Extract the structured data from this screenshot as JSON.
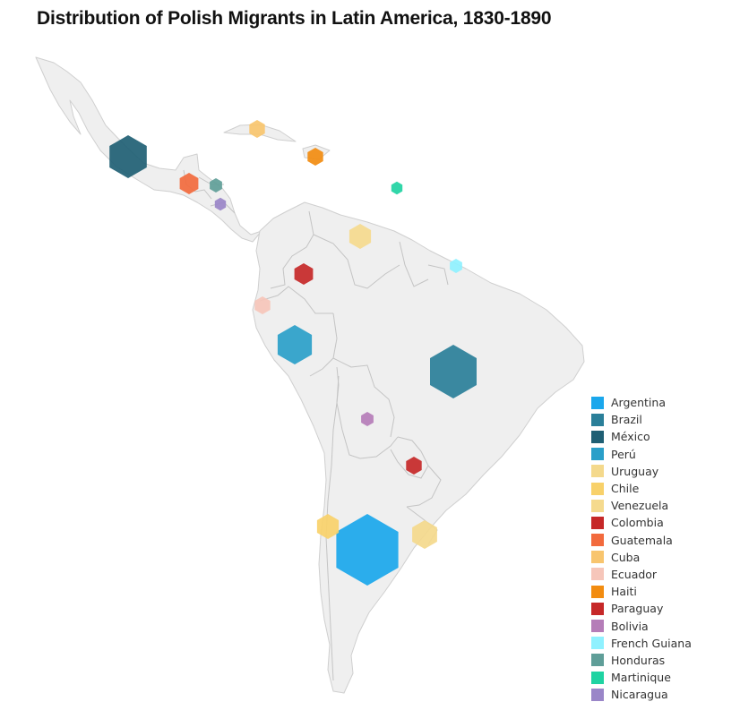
{
  "title": "Distribution of Polish Migrants in Latin America, 1830-1890",
  "legend_placement": "bottom-right",
  "countries": [
    {
      "name": "Argentina",
      "color": "#1AA7EC",
      "relative_size": 1.0
    },
    {
      "name": "Brazil",
      "color": "#2A7F99",
      "relative_size": 0.75
    },
    {
      "name": "México",
      "color": "#1F5F74",
      "relative_size": 0.6
    },
    {
      "name": "Perú",
      "color": "#2A9FC9",
      "relative_size": 0.55
    },
    {
      "name": "Uruguay",
      "color": "#F4D98C",
      "relative_size": 0.4
    },
    {
      "name": "Chile",
      "color": "#F8D16A",
      "relative_size": 0.35
    },
    {
      "name": "Venezuela",
      "color": "#F5DA8E",
      "relative_size": 0.35
    },
    {
      "name": "Colombia",
      "color": "#C62828",
      "relative_size": 0.3
    },
    {
      "name": "Guatemala",
      "color": "#F26A3D",
      "relative_size": 0.3
    },
    {
      "name": "Cuba",
      "color": "#F8C56E",
      "relative_size": 0.25
    },
    {
      "name": "Ecuador",
      "color": "#F6C6BA",
      "relative_size": 0.25
    },
    {
      "name": "Haiti",
      "color": "#F28C10",
      "relative_size": 0.25
    },
    {
      "name": "Paraguay",
      "color": "#C62828",
      "relative_size": 0.25
    },
    {
      "name": "Bolivia",
      "color": "#B57DB8",
      "relative_size": 0.2
    },
    {
      "name": "French Guiana",
      "color": "#8FF1FF",
      "relative_size": 0.2
    },
    {
      "name": "Honduras",
      "color": "#5F9E98",
      "relative_size": 0.2
    },
    {
      "name": "Martinique",
      "color": "#1FD3A2",
      "relative_size": 0.18
    },
    {
      "name": "Nicaragua",
      "color": "#9A86C8",
      "relative_size": 0.18
    }
  ]
}
